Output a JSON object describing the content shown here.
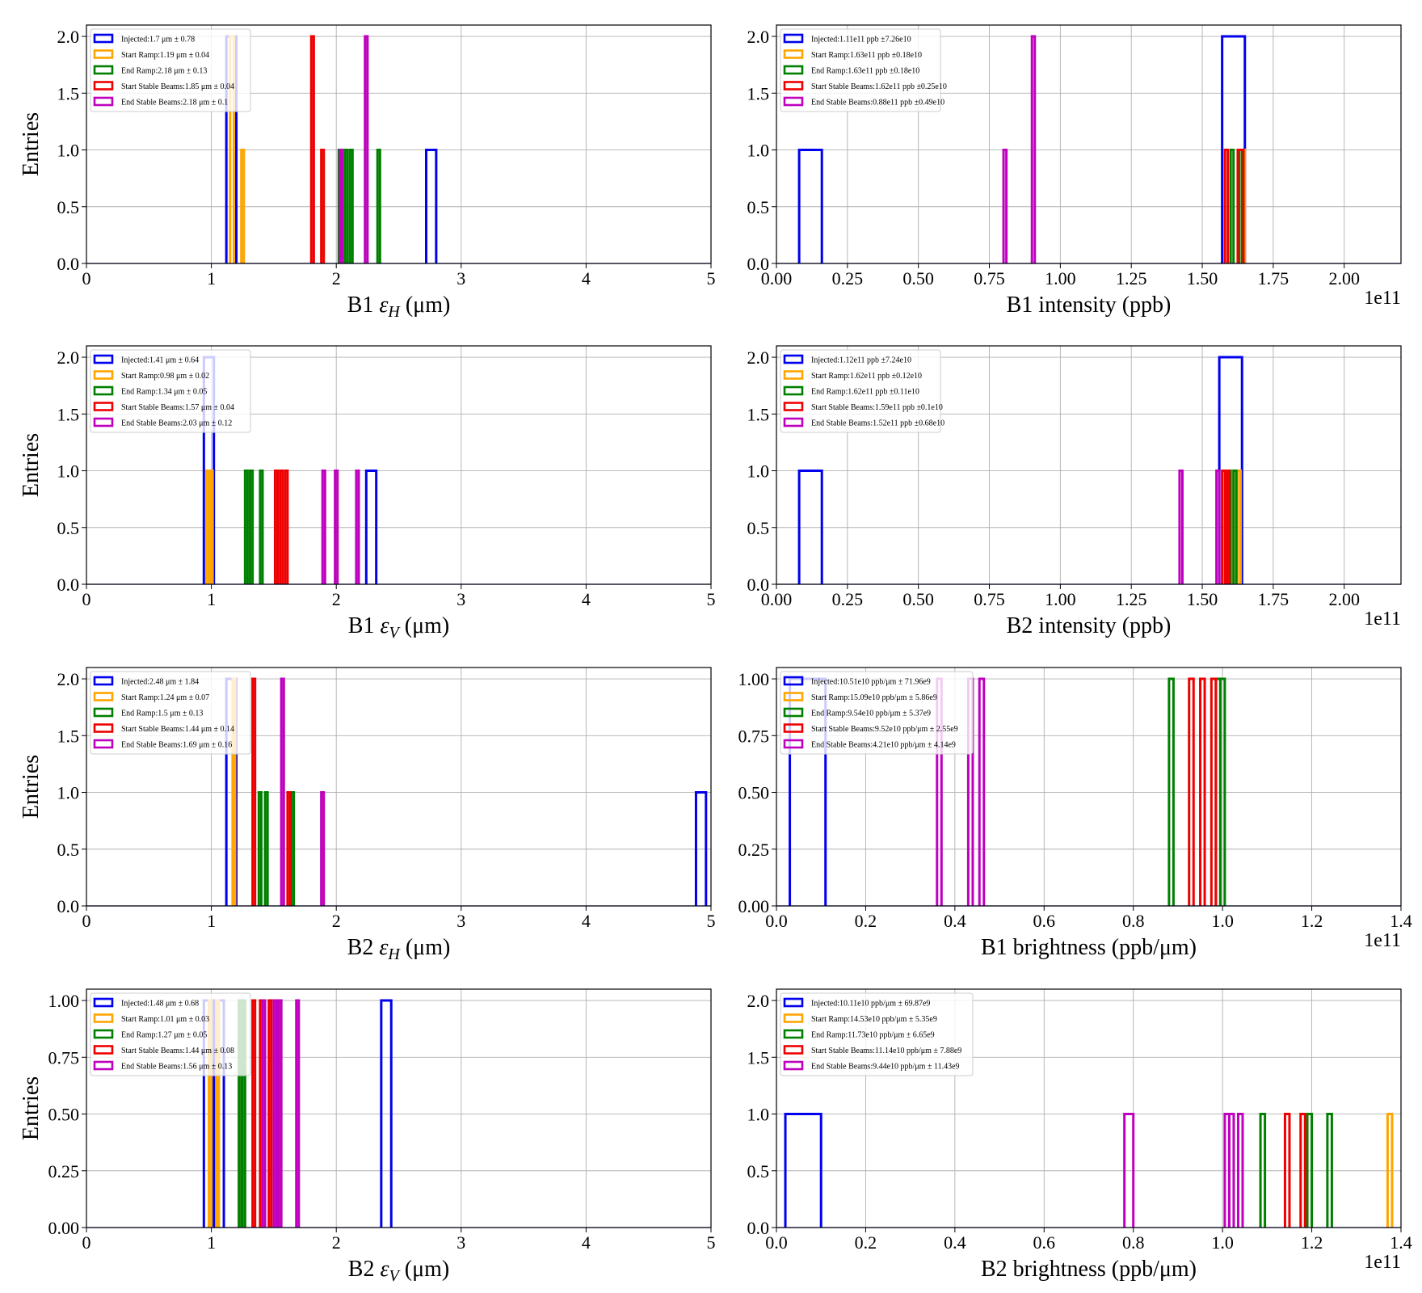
{
  "colors": {
    "Injected": "#0000ee",
    "Start Ramp": "#ffa500",
    "End Ramp": "#008000",
    "Start Stable Beams": "#ee0000",
    "End Stable Beams": "#bf00bf"
  },
  "chart_data": [
    {
      "type": "bar",
      "subtype": "histogram-step",
      "xlabel_main": "B1 ",
      "xlabel_sym": "ε",
      "xlabel_sub": "H",
      "xlabel_tail": " (μm)",
      "ylabel": "Entries",
      "xlim": [
        0,
        5
      ],
      "ylim": [
        0,
        2.1
      ],
      "xticks": [
        0,
        1,
        2,
        3,
        4,
        5
      ],
      "xticklabels": [
        "0",
        "1",
        "2",
        "3",
        "4",
        "5"
      ],
      "yticks": [
        0,
        0.5,
        1.0,
        1.5,
        2.0
      ],
      "yticklabels": [
        "0.0",
        "0.5",
        "1.0",
        "1.5",
        "2.0"
      ],
      "offset_label": "",
      "legend": [
        "Injected:1.7 μm ± 0.78",
        "Start Ramp:1.19 μm ± 0.04",
        "End Ramp:2.18 μm ± 0.13",
        "Start Stable Beams:1.85 μm ± 0.04",
        "End Stable Beams:2.18 μm ± 0.1"
      ],
      "series": [
        {
          "name": "Injected",
          "bins": [
            [
              1.12,
              1.2,
              2
            ],
            [
              2.72,
              2.8,
              1
            ]
          ]
        },
        {
          "name": "Start Ramp",
          "bins": [
            [
              1.15,
              1.18,
              2
            ],
            [
              1.24,
              1.26,
              1
            ]
          ]
        },
        {
          "name": "End Ramp",
          "bins": [
            [
              2.02,
              2.04,
              1
            ],
            [
              2.07,
              2.09,
              1
            ],
            [
              2.11,
              2.13,
              1
            ],
            [
              2.33,
              2.35,
              1
            ]
          ]
        },
        {
          "name": "Start Stable Beams",
          "bins": [
            [
              1.8,
              1.82,
              2
            ],
            [
              1.88,
              1.9,
              1
            ]
          ]
        },
        {
          "name": "End Stable Beams",
          "bins": [
            [
              2.03,
              2.05,
              1
            ],
            [
              2.23,
              2.25,
              2
            ]
          ]
        }
      ]
    },
    {
      "type": "bar",
      "subtype": "histogram-step",
      "xlabel_main": "B1 intensity (ppb)",
      "xlabel_sym": "",
      "xlabel_sub": "",
      "xlabel_tail": "",
      "ylabel": "",
      "xlim": [
        0,
        2.2
      ],
      "ylim": [
        0,
        2.1
      ],
      "xticks": [
        0,
        0.25,
        0.5,
        0.75,
        1.0,
        1.25,
        1.5,
        1.75,
        2.0
      ],
      "xticklabels": [
        "0.00",
        "0.25",
        "0.50",
        "0.75",
        "1.00",
        "1.25",
        "1.50",
        "1.75",
        "2.00"
      ],
      "yticks": [
        0,
        0.5,
        1.0,
        1.5,
        2.0
      ],
      "yticklabels": [
        "0.0",
        "0.5",
        "1.0",
        "1.5",
        "2.0"
      ],
      "offset_label": "1e11",
      "legend": [
        "Injected:1.11e11 ppb ±7.26e10",
        "Start Ramp:1.63e11 ppb ±0.18e10",
        "End Ramp:1.63e11 ppb ±0.18e10",
        "Start Stable Beams:1.62e11 ppb ±0.25e10",
        "End Stable Beams:0.88e11 ppb ±0.49e10"
      ],
      "series": [
        {
          "name": "Injected",
          "bins": [
            [
              0.08,
              0.16,
              1
            ],
            [
              1.57,
              1.65,
              2
            ]
          ]
        },
        {
          "name": "Start Ramp",
          "bins": [
            [
              1.63,
              1.65,
              1
            ]
          ]
        },
        {
          "name": "End Ramp",
          "bins": [
            [
              1.6,
              1.61,
              1
            ],
            [
              1.63,
              1.64,
              1
            ]
          ]
        },
        {
          "name": "Start Stable Beams",
          "bins": [
            [
              1.58,
              1.59,
              1
            ],
            [
              1.625,
              1.645,
              1
            ]
          ]
        },
        {
          "name": "End Stable Beams",
          "bins": [
            [
              0.8,
              0.81,
              1
            ],
            [
              0.9,
              0.91,
              2
            ]
          ]
        }
      ]
    },
    {
      "type": "bar",
      "subtype": "histogram-step",
      "xlabel_main": "B1 ",
      "xlabel_sym": "ε",
      "xlabel_sub": "V",
      "xlabel_tail": " (μm)",
      "ylabel": "Entries",
      "xlim": [
        0,
        5
      ],
      "ylim": [
        0,
        2.1
      ],
      "xticks": [
        0,
        1,
        2,
        3,
        4,
        5
      ],
      "xticklabels": [
        "0",
        "1",
        "2",
        "3",
        "4",
        "5"
      ],
      "yticks": [
        0,
        0.5,
        1.0,
        1.5,
        2.0
      ],
      "yticklabels": [
        "0.0",
        "0.5",
        "1.0",
        "1.5",
        "2.0"
      ],
      "offset_label": "",
      "legend": [
        "Injected:1.41 μm ± 0.64",
        "Start Ramp:0.98 μm ± 0.02",
        "End Ramp:1.34 μm ± 0.05",
        "Start Stable Beams:1.57 μm ± 0.04",
        "End Stable Beams:2.03 μm ± 0.12"
      ],
      "series": [
        {
          "name": "Injected",
          "bins": [
            [
              0.94,
              1.02,
              2
            ],
            [
              2.24,
              2.32,
              1
            ]
          ]
        },
        {
          "name": "Start Ramp",
          "bins": [
            [
              0.96,
              0.98,
              1
            ],
            [
              0.99,
              1.01,
              1
            ]
          ]
        },
        {
          "name": "End Ramp",
          "bins": [
            [
              1.27,
              1.29,
              1
            ],
            [
              1.31,
              1.33,
              1
            ],
            [
              1.39,
              1.41,
              1
            ]
          ]
        },
        {
          "name": "Start Stable Beams",
          "bins": [
            [
              1.51,
              1.53,
              1
            ],
            [
              1.55,
              1.57,
              1
            ],
            [
              1.59,
              1.61,
              1
            ]
          ]
        },
        {
          "name": "End Stable Beams",
          "bins": [
            [
              1.89,
              1.91,
              1
            ],
            [
              1.99,
              2.01,
              1
            ],
            [
              2.16,
              2.18,
              1
            ]
          ]
        }
      ]
    },
    {
      "type": "bar",
      "subtype": "histogram-step",
      "xlabel_main": "B2 intensity (ppb)",
      "xlabel_sym": "",
      "xlabel_sub": "",
      "xlabel_tail": "",
      "ylabel": "",
      "xlim": [
        0,
        2.2
      ],
      "ylim": [
        0,
        2.1
      ],
      "xticks": [
        0,
        0.25,
        0.5,
        0.75,
        1.0,
        1.25,
        1.5,
        1.75,
        2.0
      ],
      "xticklabels": [
        "0.00",
        "0.25",
        "0.50",
        "0.75",
        "1.00",
        "1.25",
        "1.50",
        "1.75",
        "2.00"
      ],
      "yticks": [
        0,
        0.5,
        1.0,
        1.5,
        2.0
      ],
      "yticklabels": [
        "0.0",
        "0.5",
        "1.0",
        "1.5",
        "2.0"
      ],
      "offset_label": "1e11",
      "legend": [
        "Injected:1.12e11 ppb ±7.24e10",
        "Start Ramp:1.62e11 ppb ±0.12e10",
        "End Ramp:1.62e11 ppb ±0.11e10",
        "Start Stable Beams:1.59e11 ppb ±0.1e10",
        "End Stable Beams:1.52e11 ppb ±0.68e10"
      ],
      "series": [
        {
          "name": "Injected",
          "bins": [
            [
              0.08,
              0.16,
              1
            ],
            [
              1.56,
              1.64,
              2
            ]
          ]
        },
        {
          "name": "Start Ramp",
          "bins": [
            [
              1.61,
              1.62,
              1
            ],
            [
              1.625,
              1.635,
              1
            ]
          ]
        },
        {
          "name": "End Ramp",
          "bins": [
            [
              1.59,
              1.6,
              1
            ],
            [
              1.61,
              1.62,
              1
            ]
          ]
        },
        {
          "name": "Start Stable Beams",
          "bins": [
            [
              1.57,
              1.58,
              1
            ],
            [
              1.585,
              1.595,
              1
            ]
          ]
        },
        {
          "name": "End Stable Beams",
          "bins": [
            [
              1.42,
              1.43,
              1
            ],
            [
              1.55,
              1.56,
              1
            ]
          ]
        }
      ]
    },
    {
      "type": "bar",
      "subtype": "histogram-step",
      "xlabel_main": "B2 ",
      "xlabel_sym": "ε",
      "xlabel_sub": "H",
      "xlabel_tail": " (μm)",
      "ylabel": "Entries",
      "xlim": [
        0,
        5
      ],
      "ylim": [
        0,
        2.1
      ],
      "xticks": [
        0,
        1,
        2,
        3,
        4,
        5
      ],
      "xticklabels": [
        "0",
        "1",
        "2",
        "3",
        "4",
        "5"
      ],
      "yticks": [
        0,
        0.5,
        1.0,
        1.5,
        2.0
      ],
      "yticklabels": [
        "0.0",
        "0.5",
        "1.0",
        "1.5",
        "2.0"
      ],
      "offset_label": "",
      "legend": [
        "Injected:2.48 μm ± 1.84",
        "Start Ramp:1.24 μm ± 0.07",
        "End Ramp:1.5 μm ± 0.13",
        "Start Stable Beams:1.44 μm ± 0.14",
        "End Stable Beams:1.69 μm ± 0.16"
      ],
      "series": [
        {
          "name": "Injected",
          "bins": [
            [
              1.12,
              1.2,
              2
            ],
            [
              4.88,
              4.96,
              1
            ]
          ]
        },
        {
          "name": "Start Ramp",
          "bins": [
            [
              1.17,
              1.19,
              2
            ]
          ]
        },
        {
          "name": "End Ramp",
          "bins": [
            [
              1.38,
              1.4,
              1
            ],
            [
              1.43,
              1.45,
              1
            ],
            [
              1.64,
              1.66,
              1
            ]
          ]
        },
        {
          "name": "Start Stable Beams",
          "bins": [
            [
              1.33,
              1.35,
              2
            ],
            [
              1.61,
              1.63,
              1
            ]
          ]
        },
        {
          "name": "End Stable Beams",
          "bins": [
            [
              1.56,
              1.58,
              2
            ],
            [
              1.88,
              1.9,
              1
            ]
          ]
        }
      ]
    },
    {
      "type": "bar",
      "subtype": "histogram-step",
      "xlabel_main": "B1 brightness (ppb/μm)",
      "xlabel_sym": "",
      "xlabel_sub": "",
      "xlabel_tail": "",
      "ylabel": "",
      "xlim": [
        0,
        1.4
      ],
      "ylim": [
        0,
        1.05
      ],
      "xticks": [
        0,
        0.2,
        0.4,
        0.6,
        0.8,
        1.0,
        1.2,
        1.4
      ],
      "xticklabels": [
        "0.0",
        "0.2",
        "0.4",
        "0.6",
        "0.8",
        "1.0",
        "1.2",
        "1.4"
      ],
      "yticks": [
        0,
        0.25,
        0.5,
        0.75,
        1.0
      ],
      "yticklabels": [
        "0.00",
        "0.25",
        "0.50",
        "0.75",
        "1.00"
      ],
      "offset_label": "1e11",
      "legend": [
        "Injected:10.51e10 ppb/μm ± 71.96e9",
        "Start Ramp:15.09e10 ppb/μm ± 5.86e9",
        "End Ramp:9.54e10 ppb/μm ± 5.37e9",
        "Start Stable Beams:9.52e10 ppb/μm ± 2.55e9",
        "End Stable Beams:4.21e10 ppb/μm ± 4.14e9"
      ],
      "series": [
        {
          "name": "Injected",
          "bins": [
            [
              0.03,
              0.11,
              1
            ]
          ]
        },
        {
          "name": "Start Ramp",
          "bins": []
        },
        {
          "name": "End Ramp",
          "bins": [
            [
              0.88,
              0.89,
              1
            ],
            [
              0.985,
              0.995,
              1
            ],
            [
              0.995,
              1.005,
              1
            ]
          ]
        },
        {
          "name": "Start Stable Beams",
          "bins": [
            [
              0.925,
              0.935,
              1
            ],
            [
              0.95,
              0.96,
              1
            ],
            [
              0.975,
              0.985,
              1
            ]
          ]
        },
        {
          "name": "End Stable Beams",
          "bins": [
            [
              0.36,
              0.37,
              1
            ],
            [
              0.43,
              0.44,
              1
            ],
            [
              0.455,
              0.465,
              1
            ]
          ]
        }
      ]
    },
    {
      "type": "bar",
      "subtype": "histogram-step",
      "xlabel_main": "B2 ",
      "xlabel_sym": "ε",
      "xlabel_sub": "V",
      "xlabel_tail": " (μm)",
      "ylabel": "Entries",
      "xlim": [
        0,
        5
      ],
      "ylim": [
        0,
        1.05
      ],
      "xticks": [
        0,
        1,
        2,
        3,
        4,
        5
      ],
      "xticklabels": [
        "0",
        "1",
        "2",
        "3",
        "4",
        "5"
      ],
      "yticks": [
        0,
        0.25,
        0.5,
        0.75,
        1.0
      ],
      "yticklabels": [
        "0.00",
        "0.25",
        "0.50",
        "0.75",
        "1.00"
      ],
      "offset_label": "",
      "legend": [
        "Injected:1.48 μm ± 0.68",
        "Start Ramp:1.01 μm ± 0.03",
        "End Ramp:1.27 μm ± 0.05",
        "Start Stable Beams:1.44 μm ± 0.08",
        "End Stable Beams:1.56 μm ± 0.13"
      ],
      "series": [
        {
          "name": "Injected",
          "bins": [
            [
              0.94,
              1.02,
              1
            ],
            [
              1.02,
              1.1,
              1
            ],
            [
              2.36,
              2.44,
              1
            ]
          ]
        },
        {
          "name": "Start Ramp",
          "bins": [
            [
              0.98,
              1.0,
              1
            ],
            [
              1.04,
              1.06,
              1
            ]
          ]
        },
        {
          "name": "End Ramp",
          "bins": [
            [
              1.22,
              1.24,
              1
            ],
            [
              1.25,
              1.27,
              1
            ]
          ]
        },
        {
          "name": "Start Stable Beams",
          "bins": [
            [
              1.33,
              1.35,
              1
            ],
            [
              1.39,
              1.41,
              1
            ],
            [
              1.46,
              1.48,
              1
            ],
            [
              1.52,
              1.54,
              1
            ]
          ]
        },
        {
          "name": "End Stable Beams",
          "bins": [
            [
              1.41,
              1.43,
              1
            ],
            [
              1.5,
              1.52,
              1
            ],
            [
              1.54,
              1.56,
              1
            ],
            [
              1.68,
              1.7,
              1
            ]
          ]
        }
      ]
    },
    {
      "type": "bar",
      "subtype": "histogram-step",
      "xlabel_main": "B2 brightness (ppb/μm)",
      "xlabel_sym": "",
      "xlabel_sub": "",
      "xlabel_tail": "",
      "ylabel": "",
      "xlim": [
        0,
        1.4
      ],
      "ylim": [
        0,
        2.1
      ],
      "xticks": [
        0,
        0.2,
        0.4,
        0.6,
        0.8,
        1.0,
        1.2,
        1.4
      ],
      "xticklabels": [
        "0.0",
        "0.2",
        "0.4",
        "0.6",
        "0.8",
        "1.0",
        "1.2",
        "1.4"
      ],
      "yticks": [
        0,
        0.5,
        1.0,
        1.5,
        2.0
      ],
      "yticklabels": [
        "0.0",
        "0.5",
        "1.0",
        "1.5",
        "2.0"
      ],
      "offset_label": "1e11",
      "legend": [
        "Injected:10.11e10 ppb/μm ± 69.87e9",
        "Start Ramp:14.53e10 ppb/μm ± 5.35e9",
        "End Ramp:11.73e10 ppb/μm ± 6.65e9",
        "Start Stable Beams:11.14e10 ppb/μm ± 7.88e9",
        "End Stable Beams:9.44e10 ppb/μm ± 11.43e9"
      ],
      "series": [
        {
          "name": "Injected",
          "bins": [
            [
              0.02,
              0.1,
              1
            ]
          ]
        },
        {
          "name": "Start Ramp",
          "bins": [
            [
              1.37,
              1.38,
              1
            ]
          ]
        },
        {
          "name": "End Ramp",
          "bins": [
            [
              1.085,
              1.095,
              1
            ],
            [
              1.19,
              1.2,
              1
            ],
            [
              1.235,
              1.245,
              1
            ]
          ]
        },
        {
          "name": "Start Stable Beams",
          "bins": [
            [
              1.14,
              1.15,
              1
            ],
            [
              1.175,
              1.185,
              1
            ]
          ]
        },
        {
          "name": "End Stable Beams",
          "bins": [
            [
              0.78,
              0.8,
              1
            ],
            [
              1.005,
              1.015,
              1
            ],
            [
              1.015,
              1.025,
              1
            ],
            [
              1.035,
              1.045,
              1
            ]
          ]
        }
      ]
    }
  ]
}
